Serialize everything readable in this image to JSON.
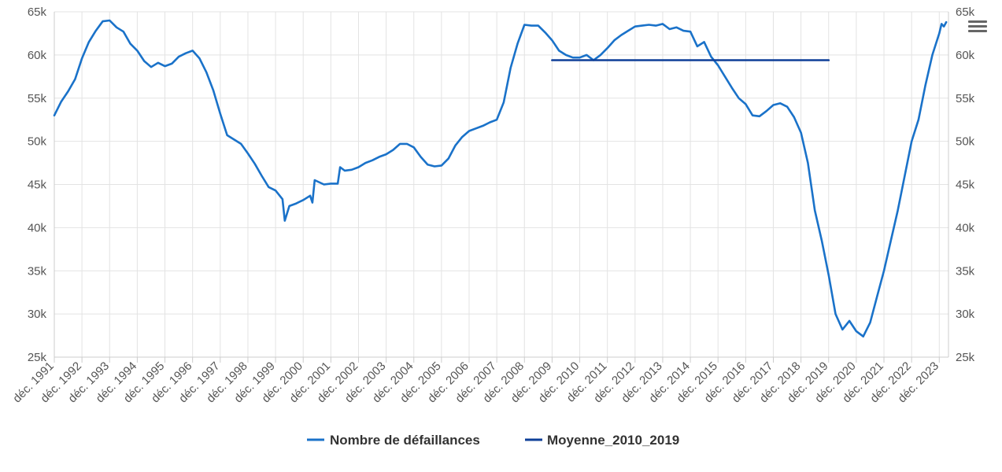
{
  "chart_data": {
    "type": "line",
    "title": "",
    "xlabel": "",
    "ylabel": "",
    "ylim": [
      25000,
      65000
    ],
    "y_ticks": [
      25000,
      30000,
      35000,
      40000,
      45000,
      50000,
      55000,
      60000,
      65000
    ],
    "y_tick_labels": [
      "25k",
      "30k",
      "35k",
      "40k",
      "45k",
      "50k",
      "55k",
      "60k",
      "65k"
    ],
    "x_range": [
      "1991-12",
      "2024-04"
    ],
    "x_ticks": [
      "1991-12",
      "1992-12",
      "1993-12",
      "1994-12",
      "1995-12",
      "1996-12",
      "1997-12",
      "1998-12",
      "1999-12",
      "2000-12",
      "2001-12",
      "2002-12",
      "2003-12",
      "2004-12",
      "2005-12",
      "2006-12",
      "2007-12",
      "2008-12",
      "2009-12",
      "2010-12",
      "2011-12",
      "2012-12",
      "2013-12",
      "2014-12",
      "2015-12",
      "2016-12",
      "2017-12",
      "2018-12",
      "2019-12",
      "2020-12",
      "2021-12",
      "2022-12",
      "2023-12"
    ],
    "x_tick_labels": [
      "déc. 1991",
      "déc. 1992",
      "déc. 1993",
      "déc. 1994",
      "déc. 1995",
      "déc. 1996",
      "déc. 1997",
      "déc. 1998",
      "déc. 1999",
      "déc. 2000",
      "déc. 2001",
      "déc. 2002",
      "déc. 2003",
      "déc. 2004",
      "déc. 2005",
      "déc. 2006",
      "déc. 2007",
      "déc. 2008",
      "déc. 2009",
      "déc. 2010",
      "déc. 2011",
      "déc. 2012",
      "déc. 2013",
      "déc. 2014",
      "déc. 2015",
      "déc. 2016",
      "déc. 2017",
      "déc. 2018",
      "déc. 2019",
      "déc. 2020",
      "déc. 2021",
      "déc. 2022",
      "déc. 2023"
    ],
    "grid": true,
    "legend_position": "bottom-center",
    "series": [
      {
        "name": "Nombre de défaillances",
        "color": "#1a72c9",
        "points": [
          [
            "1991-12",
            53000
          ],
          [
            "1992-03",
            54600
          ],
          [
            "1992-06",
            55800
          ],
          [
            "1992-09",
            57200
          ],
          [
            "1992-12",
            59600
          ],
          [
            "1993-03",
            61500
          ],
          [
            "1993-06",
            62800
          ],
          [
            "1993-09",
            63900
          ],
          [
            "1993-12",
            64000
          ],
          [
            "1994-03",
            63200
          ],
          [
            "1994-06",
            62700
          ],
          [
            "1994-09",
            61300
          ],
          [
            "1994-12",
            60500
          ],
          [
            "1995-03",
            59300
          ],
          [
            "1995-06",
            58600
          ],
          [
            "1995-09",
            59100
          ],
          [
            "1995-12",
            58700
          ],
          [
            "1996-03",
            59000
          ],
          [
            "1996-06",
            59800
          ],
          [
            "1996-09",
            60200
          ],
          [
            "1996-12",
            60500
          ],
          [
            "1997-03",
            59600
          ],
          [
            "1997-06",
            58000
          ],
          [
            "1997-09",
            55900
          ],
          [
            "1997-12",
            53200
          ],
          [
            "1998-03",
            50700
          ],
          [
            "1998-06",
            50200
          ],
          [
            "1998-09",
            49700
          ],
          [
            "1998-12",
            48600
          ],
          [
            "1999-03",
            47400
          ],
          [
            "1999-06",
            46000
          ],
          [
            "1999-09",
            44700
          ],
          [
            "1999-12",
            44300
          ],
          [
            "2000-03",
            43300
          ],
          [
            "2000-04",
            40800
          ],
          [
            "2000-06",
            42500
          ],
          [
            "2000-09",
            42800
          ],
          [
            "2000-12",
            43200
          ],
          [
            "2001-03",
            43700
          ],
          [
            "2001-04",
            42900
          ],
          [
            "2001-05",
            45500
          ],
          [
            "2001-09",
            45000
          ],
          [
            "2001-12",
            45100
          ],
          [
            "2002-03",
            45100
          ],
          [
            "2002-04",
            47000
          ],
          [
            "2002-06",
            46600
          ],
          [
            "2002-09",
            46700
          ],
          [
            "2002-12",
            47000
          ],
          [
            "2003-03",
            47500
          ],
          [
            "2003-06",
            47800
          ],
          [
            "2003-09",
            48200
          ],
          [
            "2003-12",
            48500
          ],
          [
            "2004-03",
            49000
          ],
          [
            "2004-06",
            49700
          ],
          [
            "2004-09",
            49700
          ],
          [
            "2004-12",
            49300
          ],
          [
            "2005-03",
            48200
          ],
          [
            "2005-06",
            47300
          ],
          [
            "2005-09",
            47100
          ],
          [
            "2005-12",
            47200
          ],
          [
            "2006-03",
            48000
          ],
          [
            "2006-06",
            49500
          ],
          [
            "2006-09",
            50500
          ],
          [
            "2006-12",
            51200
          ],
          [
            "2007-03",
            51500
          ],
          [
            "2007-06",
            51800
          ],
          [
            "2007-09",
            52200
          ],
          [
            "2007-12",
            52500
          ],
          [
            "2008-03",
            54500
          ],
          [
            "2008-06",
            58500
          ],
          [
            "2008-09",
            61300
          ],
          [
            "2008-12",
            63500
          ],
          [
            "2009-03",
            63400
          ],
          [
            "2009-06",
            63400
          ],
          [
            "2009-09",
            62600
          ],
          [
            "2009-12",
            61700
          ],
          [
            "2010-03",
            60500
          ],
          [
            "2010-06",
            60000
          ],
          [
            "2010-09",
            59700
          ],
          [
            "2010-12",
            59700
          ],
          [
            "2011-03",
            60000
          ],
          [
            "2011-06",
            59400
          ],
          [
            "2011-09",
            60000
          ],
          [
            "2011-12",
            60800
          ],
          [
            "2012-03",
            61700
          ],
          [
            "2012-06",
            62300
          ],
          [
            "2012-09",
            62800
          ],
          [
            "2012-12",
            63300
          ],
          [
            "2013-03",
            63400
          ],
          [
            "2013-06",
            63500
          ],
          [
            "2013-09",
            63400
          ],
          [
            "2013-12",
            63600
          ],
          [
            "2014-03",
            63000
          ],
          [
            "2014-06",
            63200
          ],
          [
            "2014-09",
            62800
          ],
          [
            "2014-12",
            62700
          ],
          [
            "2015-03",
            61000
          ],
          [
            "2015-06",
            61500
          ],
          [
            "2015-09",
            59800
          ],
          [
            "2015-12",
            58800
          ],
          [
            "2016-03",
            57500
          ],
          [
            "2016-06",
            56200
          ],
          [
            "2016-09",
            55000
          ],
          [
            "2016-12",
            54300
          ],
          [
            "2017-03",
            53000
          ],
          [
            "2017-06",
            52900
          ],
          [
            "2017-09",
            53500
          ],
          [
            "2017-12",
            54200
          ],
          [
            "2018-03",
            54400
          ],
          [
            "2018-06",
            54000
          ],
          [
            "2018-09",
            52800
          ],
          [
            "2018-12",
            51000
          ],
          [
            "2019-03",
            47500
          ],
          [
            "2019-06",
            42000
          ],
          [
            "2019-09",
            38500
          ],
          [
            "2019-12",
            34500
          ],
          [
            "2020-03",
            30000
          ],
          [
            "2020-06",
            28200
          ],
          [
            "2020-09",
            29200
          ],
          [
            "2020-12",
            28000
          ],
          [
            "2021-03",
            27400
          ],
          [
            "2021-06",
            29000
          ],
          [
            "2021-09",
            32000
          ],
          [
            "2021-12",
            35000
          ],
          [
            "2022-03",
            38500
          ],
          [
            "2022-06",
            42000
          ],
          [
            "2022-09",
            46000
          ],
          [
            "2022-12",
            50000
          ],
          [
            "2023-03",
            52500
          ],
          [
            "2023-06",
            56500
          ],
          [
            "2023-09",
            60000
          ],
          [
            "2023-12",
            62500
          ],
          [
            "2024-01",
            63600
          ],
          [
            "2024-02",
            63300
          ],
          [
            "2024-03",
            63800
          ]
        ]
      },
      {
        "name": "Moyenne_2010_2019",
        "color": "#0e3f98",
        "points": [
          [
            "2009-12",
            59400
          ],
          [
            "2019-12",
            59400
          ]
        ]
      }
    ]
  },
  "menu_icon": "hamburger-menu-icon"
}
